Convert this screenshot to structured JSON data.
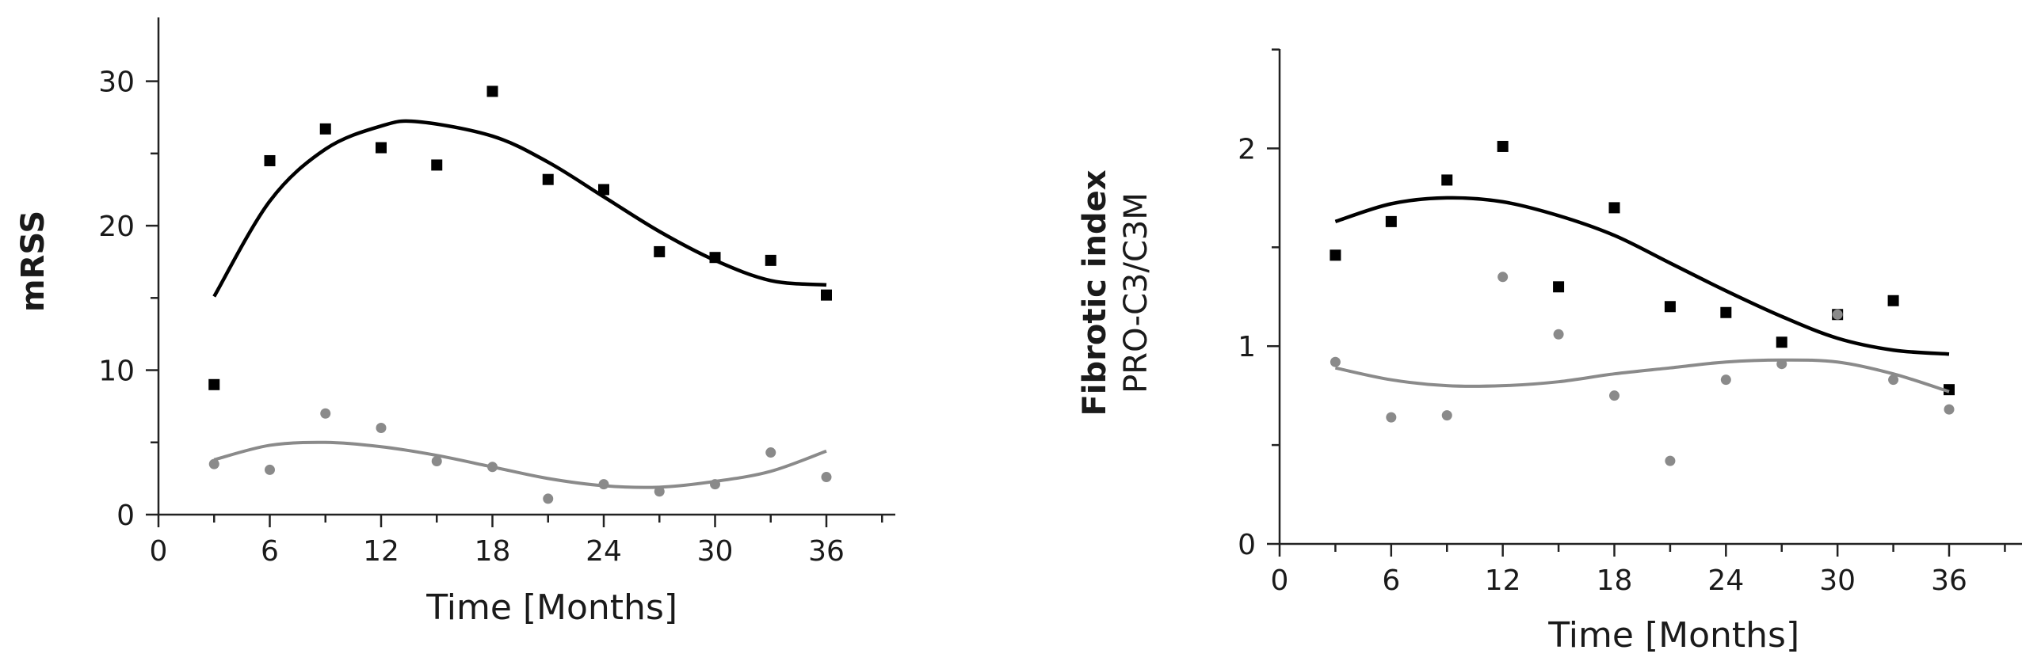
{
  "colors": {
    "series_dark": "#000000",
    "series_light": "#8a8a8a",
    "axis": "#222222"
  },
  "chart_data": [
    {
      "type": "scatter",
      "title": "",
      "xlabel": "Time [Months]",
      "ylabel": "mRSS",
      "ylabel_bold": "",
      "xlim": [
        0,
        39
      ],
      "ylim": [
        0,
        35
      ],
      "xticks": [
        0,
        6,
        12,
        18,
        24,
        30,
        36
      ],
      "yticks": [
        0,
        10,
        20,
        30
      ],
      "grid": false,
      "series": [
        {
          "color": "#000000",
          "marker": "square",
          "x": [
            3,
            6,
            9,
            12,
            15,
            18,
            21,
            24,
            27,
            30,
            33,
            36
          ],
          "y": [
            9.0,
            24.5,
            26.7,
            25.4,
            24.2,
            29.3,
            23.2,
            22.5,
            18.2,
            17.8,
            17.6,
            15.2
          ],
          "fit_x": [
            3,
            6,
            9,
            12,
            14,
            18,
            21,
            24,
            27,
            30,
            33,
            36
          ],
          "fit_y": [
            15.1,
            21.7,
            25.3,
            26.9,
            27.2,
            26.2,
            24.4,
            22.0,
            19.6,
            17.6,
            16.2,
            15.9
          ]
        },
        {
          "color": "#8a8a8a",
          "marker": "circle",
          "x": [
            3,
            6,
            9,
            12,
            15,
            18,
            21,
            24,
            27,
            30,
            33,
            36
          ],
          "y": [
            3.5,
            3.1,
            7.0,
            6.0,
            3.7,
            3.3,
            1.1,
            2.1,
            1.6,
            2.1,
            4.3,
            2.6
          ],
          "fit_x": [
            3,
            6,
            9,
            12,
            15,
            18,
            21,
            24,
            27,
            30,
            33,
            36
          ],
          "fit_y": [
            3.8,
            4.8,
            5.0,
            4.7,
            4.1,
            3.3,
            2.5,
            2.0,
            1.9,
            2.3,
            3.0,
            4.4
          ]
        }
      ]
    },
    {
      "type": "scatter",
      "title": "",
      "xlabel": "Time [Months]",
      "ylabel": "PRO-C3/C3M",
      "ylabel_bold": "Fibrotic index",
      "xlim": [
        0,
        39
      ],
      "ylim": [
        0,
        2.5
      ],
      "xticks": [
        0,
        6,
        12,
        18,
        24,
        30,
        36
      ],
      "yticks": [
        0,
        1,
        2
      ],
      "grid": false,
      "series": [
        {
          "color": "#000000",
          "marker": "square",
          "x": [
            3,
            6,
            9,
            12,
            15,
            18,
            21,
            24,
            27,
            30,
            33,
            36
          ],
          "y": [
            1.46,
            1.63,
            1.84,
            2.01,
            1.3,
            1.7,
            1.2,
            1.17,
            1.02,
            1.16,
            1.23,
            0.78
          ],
          "fit_x": [
            3,
            6,
            9,
            12,
            15,
            18,
            21,
            24,
            27,
            30,
            33,
            36
          ],
          "fit_y": [
            1.63,
            1.72,
            1.75,
            1.73,
            1.66,
            1.56,
            1.42,
            1.28,
            1.15,
            1.04,
            0.98,
            0.96
          ]
        },
        {
          "color": "#8a8a8a",
          "marker": "circle",
          "x": [
            3,
            6,
            9,
            12,
            15,
            18,
            21,
            24,
            27,
            30,
            33,
            36
          ],
          "y": [
            0.92,
            0.64,
            0.65,
            1.35,
            1.06,
            0.75,
            0.42,
            0.83,
            0.91,
            1.16,
            0.83,
            0.68
          ],
          "fit_x": [
            3,
            6,
            9,
            12,
            15,
            18,
            21,
            24,
            27,
            30,
            33,
            36
          ],
          "fit_y": [
            0.89,
            0.83,
            0.8,
            0.8,
            0.82,
            0.86,
            0.89,
            0.92,
            0.93,
            0.92,
            0.86,
            0.77
          ]
        }
      ]
    }
  ]
}
